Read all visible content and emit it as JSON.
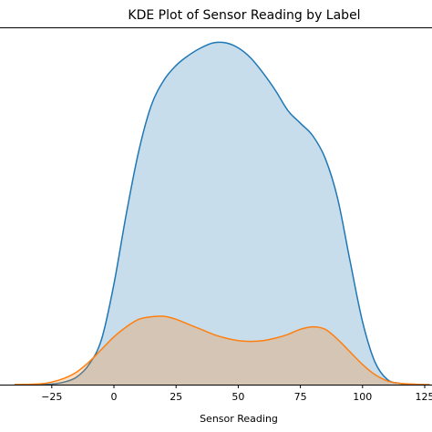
{
  "chart_data": {
    "type": "area",
    "title": "KDE Plot of Sensor Reading by Label",
    "xlabel": "Sensor Reading",
    "ylabel": "",
    "xlim": [
      -40,
      127
    ],
    "ylim": [
      0,
      0.0136
    ],
    "grid": false,
    "x_ticks": [
      -25,
      0,
      25,
      50,
      75,
      100,
      125
    ],
    "x_tick_labels": [
      "−25",
      "0",
      "25",
      "50",
      "75",
      "100",
      "125"
    ],
    "series": [
      {
        "color": "#1f77b4",
        "fill": "#1f77b4",
        "x": [
          -40,
          -30,
          -25,
          -20,
          -15,
          -10,
          -5,
          0,
          5,
          10,
          15,
          20,
          25,
          30,
          35,
          40,
          45,
          50,
          55,
          60,
          65,
          70,
          75,
          80,
          85,
          90,
          95,
          100,
          105,
          110,
          115,
          120,
          125,
          127
        ],
        "y": [
          0.0,
          0.0,
          2e-05,
          0.0001,
          0.0003,
          0.0008,
          0.0018,
          0.004,
          0.0068,
          0.0093,
          0.0111,
          0.0121,
          0.0127,
          0.0131,
          0.0134,
          0.0136,
          0.0136,
          0.0134,
          0.013,
          0.0124,
          0.0117,
          0.0109,
          0.0104,
          0.0099,
          0.009,
          0.0074,
          0.0049,
          0.0025,
          0.0009,
          0.0002,
          5e-05,
          1e-05,
          0.0,
          0.0
        ]
      },
      {
        "color": "#ff7f0e",
        "fill": "#ff7f0e",
        "x": [
          -40,
          -30,
          -25,
          -20,
          -15,
          -10,
          -5,
          0,
          5,
          10,
          15,
          20,
          25,
          30,
          35,
          40,
          45,
          50,
          55,
          60,
          65,
          70,
          75,
          80,
          85,
          90,
          95,
          100,
          105,
          110,
          115,
          120,
          125,
          127
        ],
        "y": [
          0.0,
          3e-05,
          0.0001,
          0.00025,
          0.0005,
          0.0009,
          0.0014,
          0.0019,
          0.0023,
          0.0026,
          0.0027,
          0.00272,
          0.0026,
          0.0024,
          0.0022,
          0.002,
          0.00185,
          0.00175,
          0.00172,
          0.00175,
          0.00185,
          0.002,
          0.0022,
          0.0023,
          0.0022,
          0.0018,
          0.0013,
          0.0008,
          0.0004,
          0.00015,
          5e-05,
          2e-05,
          0.0,
          0.0
        ]
      }
    ]
  }
}
